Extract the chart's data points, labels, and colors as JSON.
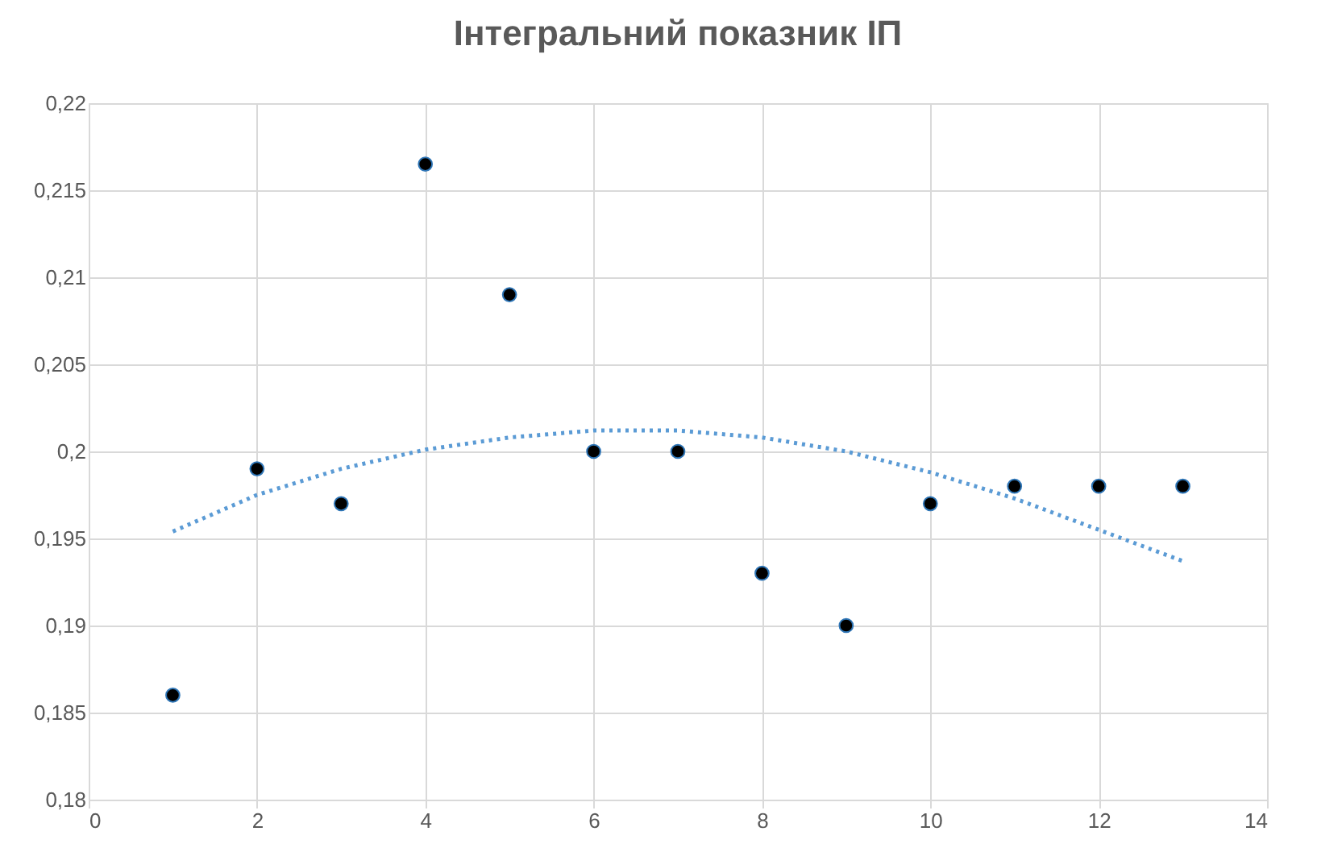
{
  "chart_data": {
    "type": "scatter",
    "title": "Інтегральний показник ІП",
    "grid": true,
    "xlim": [
      0,
      14
    ],
    "xticks": [
      0,
      2,
      4,
      6,
      8,
      10,
      12,
      14
    ],
    "ylim": [
      0.18,
      0.22
    ],
    "yticks": [
      {
        "value": 0.18,
        "label": "0,18"
      },
      {
        "value": 0.185,
        "label": "0,185"
      },
      {
        "value": 0.19,
        "label": "0,19"
      },
      {
        "value": 0.195,
        "label": "0,195"
      },
      {
        "value": 0.2,
        "label": "0,2"
      },
      {
        "value": 0.205,
        "label": "0,205"
      },
      {
        "value": 0.21,
        "label": "0,21"
      },
      {
        "value": 0.215,
        "label": "0,215"
      },
      {
        "value": 0.22,
        "label": "0,22"
      }
    ],
    "series": [
      {
        "marker": "circle",
        "color": "#000000",
        "x": [
          1,
          2,
          3,
          4,
          5,
          6,
          7,
          8,
          9,
          10,
          11,
          12,
          13
        ],
        "values": [
          0.186,
          0.199,
          0.197,
          0.2165,
          0.209,
          0.2,
          0.2,
          0.193,
          0.19,
          0.197,
          0.198,
          0.198,
          0.198
        ]
      },
      {
        "type": "line",
        "line_style": "dotted",
        "marker": "none",
        "color": "#5b9bd5",
        "x": [
          1,
          2,
          3,
          4,
          5,
          6,
          7,
          8,
          9,
          10,
          11,
          12,
          13
        ],
        "values": [
          0.1954,
          0.1975,
          0.199,
          0.2001,
          0.2008,
          0.2012,
          0.2012,
          0.2008,
          0.2,
          0.1988,
          0.1973,
          0.1955,
          0.1937
        ]
      }
    ]
  }
}
